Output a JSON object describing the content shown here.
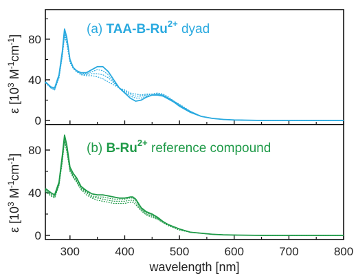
{
  "chart_data": [
    {
      "type": "line",
      "panel": "top",
      "label_prefix": "(a) ",
      "label_bold": "TAA-B-Ru",
      "label_sup": "2+",
      "label_suffix": " dyad",
      "color": "#29a9df",
      "ylabel": "ε [10³ M⁻¹cm⁻¹]",
      "ylabel_main": "ε [10",
      "ylabel_exp": "3",
      "ylabel_rest": " M",
      "ylabel_exp2": "-1",
      "ylabel_rest2": "cm",
      "ylabel_exp3": "-1",
      "ylabel_end": "]",
      "ylim": [
        0,
        105
      ],
      "yticks": [
        0,
        40,
        80
      ],
      "xlim": [
        255,
        800
      ],
      "series": [
        {
          "x": [
            255,
            265,
            272,
            280,
            286,
            290,
            294,
            300,
            306,
            312,
            320,
            330,
            340,
            350,
            360,
            370,
            380,
            390,
            400,
            410,
            420,
            430,
            440,
            450,
            460,
            470,
            480,
            490,
            500,
            520,
            540,
            560,
            580,
            600,
            650,
            700,
            750,
            800
          ],
          "y": [
            38,
            33,
            32,
            45,
            68,
            90,
            82,
            60,
            52,
            49,
            47,
            47,
            50,
            53,
            53,
            48,
            40,
            32,
            27,
            22,
            19,
            20,
            23,
            25,
            25,
            24,
            21,
            18,
            14,
            8,
            4,
            2,
            1,
            0.5,
            0,
            0,
            0,
            0
          ]
        },
        {
          "x": [
            255,
            265,
            272,
            280,
            286,
            290,
            294,
            300,
            306,
            312,
            320,
            330,
            340,
            350,
            360,
            370,
            380,
            390,
            400,
            410,
            420,
            430,
            440,
            450,
            460,
            470,
            480,
            490,
            500,
            520,
            540,
            560,
            580,
            600,
            650,
            700,
            750,
            800
          ],
          "y": [
            38,
            33,
            31,
            44,
            66,
            87,
            80,
            59,
            52,
            49,
            46,
            46,
            48,
            50,
            49,
            45,
            38,
            32,
            28,
            24,
            22,
            22,
            24,
            25,
            26,
            25,
            22,
            19,
            15,
            9,
            4,
            2,
            1,
            0.5,
            0,
            0,
            0,
            0
          ]
        },
        {
          "x": [
            255,
            265,
            272,
            280,
            286,
            290,
            294,
            300,
            306,
            312,
            320,
            330,
            340,
            350,
            360,
            370,
            380,
            390,
            400,
            410,
            420,
            430,
            440,
            450,
            460,
            470,
            480,
            490,
            500,
            520,
            540,
            560,
            580,
            600,
            650,
            700,
            750,
            800
          ],
          "y": [
            38,
            32,
            30,
            43,
            64,
            85,
            78,
            58,
            51,
            48,
            45,
            45,
            46,
            46,
            45,
            42,
            37,
            32,
            29,
            26,
            24,
            24,
            25,
            26,
            26,
            25,
            22,
            19,
            15,
            9,
            4,
            2,
            1,
            0.5,
            0,
            0,
            0,
            0
          ]
        },
        {
          "x": [
            255,
            265,
            272,
            280,
            286,
            290,
            294,
            300,
            306,
            312,
            320,
            330,
            340,
            350,
            360,
            370,
            380,
            390,
            400,
            410,
            420,
            430,
            440,
            450,
            460,
            470,
            480,
            490,
            500,
            520,
            540,
            560,
            580,
            600,
            650,
            700,
            750,
            800
          ],
          "y": [
            37,
            32,
            30,
            42,
            63,
            83,
            76,
            57,
            51,
            48,
            45,
            44,
            44,
            43,
            41,
            38,
            35,
            32,
            30,
            27,
            26,
            25,
            26,
            26,
            27,
            26,
            23,
            19,
            16,
            9,
            4,
            2,
            1,
            0.5,
            0,
            0,
            0,
            0
          ]
        }
      ]
    },
    {
      "type": "line",
      "panel": "bottom",
      "label_prefix": "(b) ",
      "label_bold": "B-Ru",
      "label_sup": "2+",
      "label_suffix": " reference compound",
      "color": "#1f9a48",
      "ylabel": "ε [10³ M⁻¹cm⁻¹]",
      "ylabel_main": "ε [10",
      "ylabel_exp": "3",
      "ylabel_rest": " M",
      "ylabel_exp2": "-1",
      "ylabel_rest2": "cm",
      "ylabel_exp3": "-1",
      "ylabel_end": "]",
      "ylim": [
        0,
        100
      ],
      "yticks": [
        0,
        40,
        80
      ],
      "xlim": [
        255,
        800
      ],
      "xlabel": "wavelength [nm]",
      "xticks": [
        300,
        400,
        500,
        600,
        700,
        800
      ],
      "series": [
        {
          "x": [
            255,
            265,
            272,
            280,
            286,
            290,
            294,
            300,
            306,
            312,
            320,
            330,
            340,
            350,
            360,
            370,
            380,
            390,
            400,
            410,
            415,
            420,
            430,
            440,
            450,
            460,
            470,
            480,
            490,
            500,
            520,
            540,
            560,
            580,
            600,
            650,
            700,
            750,
            800
          ],
          "y": [
            44,
            40,
            38,
            50,
            75,
            94,
            85,
            64,
            58,
            54,
            46,
            42,
            39,
            38,
            38,
            37,
            36,
            35,
            35,
            36,
            36,
            34,
            26,
            22,
            20,
            17,
            13,
            10,
            8,
            6,
            3,
            2,
            1,
            0.5,
            0.3,
            0,
            0,
            0,
            0
          ]
        },
        {
          "x": [
            255,
            265,
            272,
            280,
            286,
            290,
            294,
            300,
            306,
            312,
            320,
            330,
            340,
            350,
            360,
            370,
            380,
            390,
            400,
            410,
            415,
            420,
            430,
            440,
            450,
            460,
            470,
            480,
            490,
            500,
            520,
            540,
            560,
            580,
            600,
            650,
            700,
            750,
            800
          ],
          "y": [
            43,
            39,
            37,
            49,
            73,
            92,
            83,
            62,
            56,
            52,
            45,
            41,
            37,
            36,
            36,
            35,
            34,
            34,
            34,
            35,
            35,
            33,
            25,
            21,
            19,
            16,
            13,
            10,
            8,
            6,
            3,
            2,
            1,
            0.5,
            0.3,
            0,
            0,
            0,
            0
          ]
        },
        {
          "x": [
            255,
            265,
            272,
            280,
            286,
            290,
            294,
            300,
            306,
            312,
            320,
            330,
            340,
            350,
            360,
            370,
            380,
            390,
            400,
            410,
            415,
            420,
            430,
            440,
            450,
            460,
            470,
            480,
            490,
            500,
            520,
            540,
            560,
            580,
            600,
            650,
            700,
            750,
            800
          ],
          "y": [
            42,
            38,
            36,
            48,
            71,
            90,
            81,
            61,
            55,
            51,
            44,
            40,
            36,
            35,
            34,
            33,
            32,
            32,
            32,
            33,
            33,
            31,
            24,
            20,
            18,
            16,
            12,
            10,
            8,
            6,
            3,
            2,
            1,
            0.5,
            0.3,
            0,
            0,
            0,
            0
          ]
        },
        {
          "x": [
            255,
            265,
            272,
            280,
            286,
            290,
            294,
            300,
            306,
            312,
            320,
            330,
            340,
            350,
            360,
            370,
            380,
            390,
            400,
            410,
            415,
            420,
            430,
            440,
            450,
            460,
            470,
            480,
            490,
            500,
            520,
            540,
            560,
            580,
            600,
            650,
            700,
            750,
            800
          ],
          "y": [
            41,
            37,
            35,
            47,
            69,
            88,
            79,
            60,
            54,
            50,
            43,
            38,
            35,
            33,
            32,
            31,
            30,
            30,
            30,
            31,
            31,
            29,
            23,
            19,
            17,
            15,
            12,
            9,
            7,
            5,
            3,
            2,
            1,
            0.5,
            0.3,
            0,
            0,
            0,
            0
          ]
        }
      ]
    }
  ]
}
